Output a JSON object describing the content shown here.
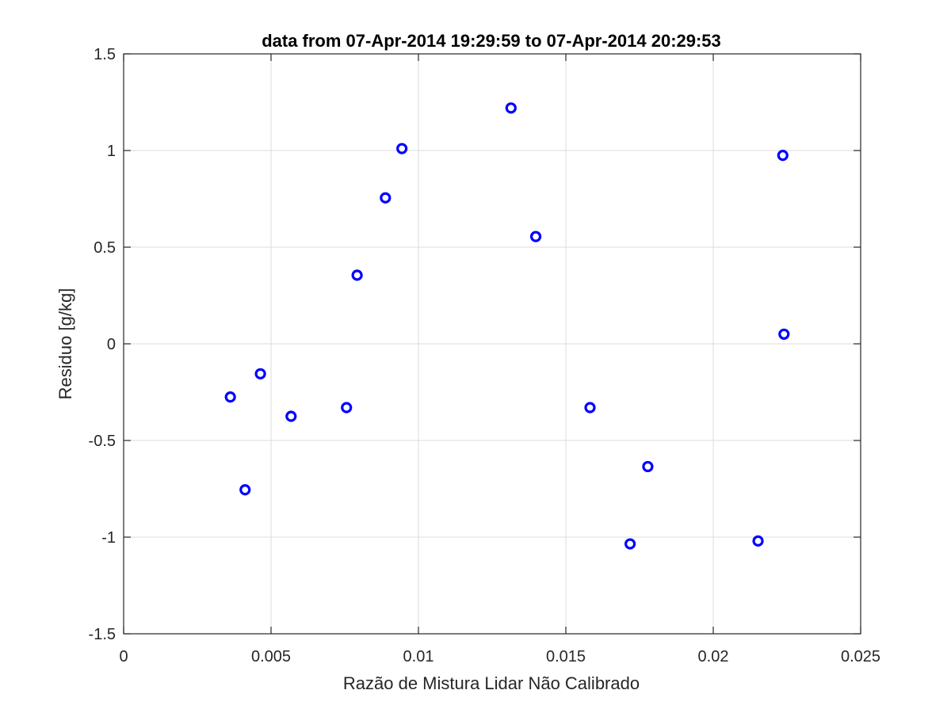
{
  "chart_data": {
    "type": "scatter",
    "title": "data from 07-Apr-2014 19:29:59 to 07-Apr-2014 20:29:53",
    "xlabel": "Razão de Mistura Lidar Não Calibrado",
    "ylabel": "Residuo [g/kg]",
    "xlim": [
      0,
      0.025
    ],
    "ylim": [
      -1.5,
      1.5
    ],
    "x_ticks": [
      0,
      0.005,
      0.01,
      0.015,
      0.02,
      0.025
    ],
    "x_tick_labels": [
      "0",
      "0.005",
      "0.01",
      "0.015",
      "0.02",
      "0.025"
    ],
    "y_ticks": [
      -1.5,
      -1,
      -0.5,
      0,
      0.5,
      1,
      1.5
    ],
    "y_tick_labels": [
      "-1.5",
      "-1",
      "-0.5",
      "0",
      "0.5",
      "1",
      "1.5"
    ],
    "grid": true,
    "marker": "circle-open",
    "series": [
      {
        "color": "#0000ff",
        "points": [
          {
            "x": 0.00362,
            "y": -0.275
          },
          {
            "x": 0.00412,
            "y": -0.755
          },
          {
            "x": 0.00464,
            "y": -0.155
          },
          {
            "x": 0.00568,
            "y": -0.375
          },
          {
            "x": 0.00756,
            "y": -0.33
          },
          {
            "x": 0.00792,
            "y": 0.355
          },
          {
            "x": 0.00888,
            "y": 0.755
          },
          {
            "x": 0.00944,
            "y": 1.01
          },
          {
            "x": 0.01314,
            "y": 1.22
          },
          {
            "x": 0.01398,
            "y": 0.555
          },
          {
            "x": 0.01582,
            "y": -0.33
          },
          {
            "x": 0.01718,
            "y": -1.035
          },
          {
            "x": 0.01778,
            "y": -0.635
          },
          {
            "x": 0.02152,
            "y": -1.02
          },
          {
            "x": 0.02236,
            "y": 0.975
          },
          {
            "x": 0.0224,
            "y": 0.05
          }
        ]
      }
    ]
  }
}
